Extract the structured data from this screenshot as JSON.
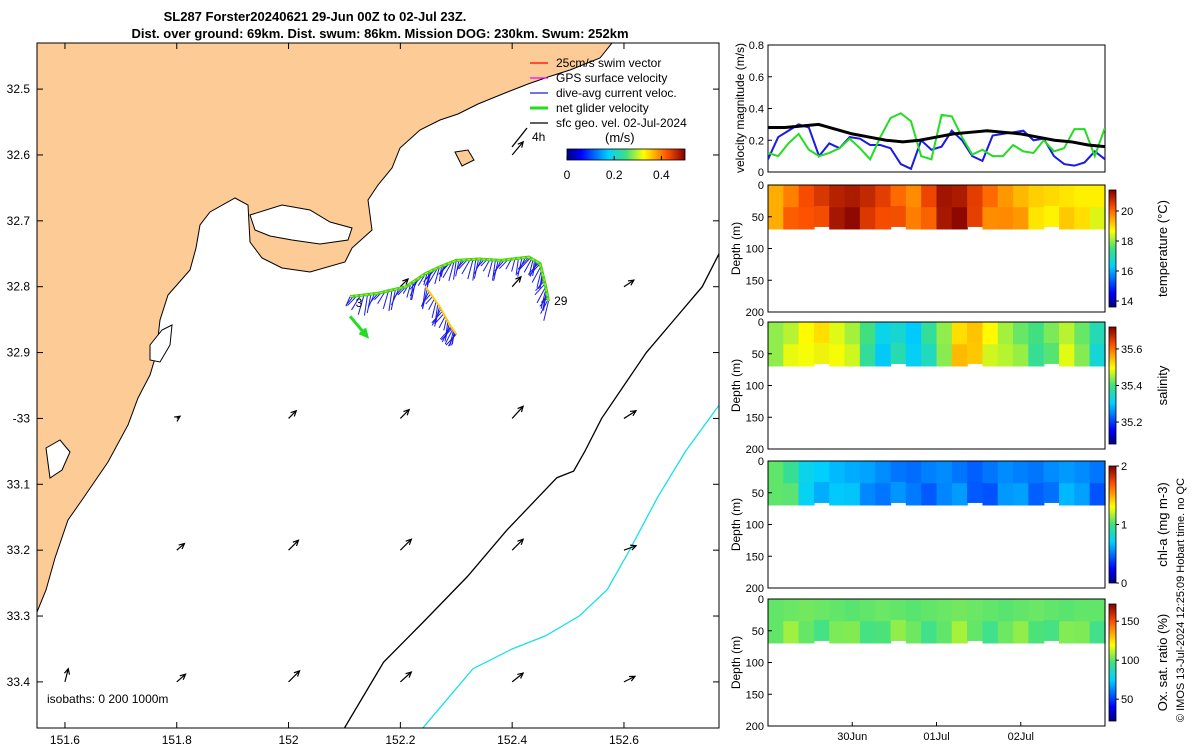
{
  "title": {
    "line1": "SL287 Forster20240621 29-Jun 00Z to 02-Jul 23Z.",
    "line2": "Dist. over ground: 69km. Dist. swum: 86km. Mission DOG: 230km. Swum: 252km"
  },
  "colors": {
    "land": "#fccb96",
    "gps": "#ff00ff",
    "swim": "#ff0000",
    "dive_avg": "#1a1ae6",
    "net_glider": "#22dd22",
    "geo_vel": "#000000",
    "isobath_200": "#000000",
    "isobath_1000": "#19e0e8",
    "track": "#ffcc00"
  },
  "chart_data": [
    {
      "type": "map",
      "name": "glider track map",
      "xlim": [
        151.55,
        152.77
      ],
      "ylim": [
        -33.47,
        -32.43
      ],
      "x_tick_labels": [
        "151.6",
        "151.8",
        "152",
        "152.2",
        "152.4",
        "152.6"
      ],
      "x_ticks": [
        151.6,
        151.8,
        152.0,
        152.2,
        152.4,
        152.6
      ],
      "y_tick_labels": [
        "32.5",
        "32.6",
        "32.7",
        "32.8",
        "32.9",
        "-33",
        "33.1",
        "33.2",
        "33.3",
        "33.4"
      ],
      "y_ticks": [
        -32.5,
        -32.6,
        -32.7,
        -32.8,
        -32.9,
        -33.0,
        -33.1,
        -33.2,
        -33.3,
        -33.4
      ],
      "legend": [
        {
          "label": "25cm/s swim vector",
          "color": "#ff0000"
        },
        {
          "label": "GPS surface velocity",
          "color": "#ff00ff"
        },
        {
          "label": "dive-avg current veloc.",
          "color": "#1a1ae6"
        },
        {
          "label": "net glider velocity",
          "color": "#22dd22"
        },
        {
          "label": "sfc geo. vel. 02-Jul-2024",
          "color": "#000000"
        }
      ],
      "scale_label": "4h",
      "colorbar": {
        "unit": "(m/s)",
        "range": [
          0,
          0.5
        ],
        "tick_labels": [
          "0",
          "0.2",
          "0.4"
        ],
        "ticks": [
          0,
          0.2,
          0.4
        ]
      },
      "isobaths_label": "isobaths: 0   200  1000m",
      "track_labels": [
        "3",
        "29"
      ],
      "track": [
        [
          152.11,
          -32.815
        ],
        [
          152.16,
          -32.81
        ],
        [
          152.21,
          -32.8
        ],
        [
          152.245,
          -32.78
        ],
        [
          152.27,
          -32.77
        ],
        [
          152.3,
          -32.76
        ],
        [
          152.34,
          -32.758
        ],
        [
          152.38,
          -32.76
        ],
        [
          152.43,
          -32.755
        ],
        [
          152.45,
          -32.765
        ],
        [
          152.46,
          -32.8
        ],
        [
          152.465,
          -32.822
        ]
      ],
      "track_branch": [
        [
          152.245,
          -32.8
        ],
        [
          152.27,
          -32.83
        ],
        [
          152.29,
          -32.86
        ],
        [
          152.3,
          -32.872
        ]
      ],
      "net_velocity": {
        "from": [
          152.11,
          -32.845
        ],
        "to": [
          152.14,
          -32.875
        ]
      },
      "geo_vectors": [
        {
          "lon": 151.6,
          "lat": -33.4,
          "u": 0.03,
          "v": 0.12
        },
        {
          "lon": 151.8,
          "lat": -33.4,
          "u": 0.08,
          "v": 0.07
        },
        {
          "lon": 152.0,
          "lat": -33.4,
          "u": 0.1,
          "v": 0.1
        },
        {
          "lon": 152.2,
          "lat": -33.4,
          "u": 0.1,
          "v": 0.09
        },
        {
          "lon": 152.4,
          "lat": -33.4,
          "u": 0.1,
          "v": 0.08
        },
        {
          "lon": 152.6,
          "lat": -33.4,
          "u": 0.1,
          "v": 0.05
        },
        {
          "lon": 151.8,
          "lat": -33.2,
          "u": 0.07,
          "v": 0.06
        },
        {
          "lon": 152.0,
          "lat": -33.2,
          "u": 0.09,
          "v": 0.09
        },
        {
          "lon": 152.2,
          "lat": -33.2,
          "u": 0.1,
          "v": 0.1
        },
        {
          "lon": 152.4,
          "lat": -33.2,
          "u": 0.1,
          "v": 0.1
        },
        {
          "lon": 152.6,
          "lat": -33.2,
          "u": 0.11,
          "v": 0.04
        },
        {
          "lon": 151.8,
          "lat": -33.0,
          "u": 0.03,
          "v": 0.02
        },
        {
          "lon": 152.0,
          "lat": -33.0,
          "u": 0.07,
          "v": 0.07
        },
        {
          "lon": 152.2,
          "lat": -33.0,
          "u": 0.08,
          "v": 0.08
        },
        {
          "lon": 152.4,
          "lat": -33.0,
          "u": 0.1,
          "v": 0.11
        },
        {
          "lon": 152.6,
          "lat": -33.0,
          "u": 0.11,
          "v": 0.07
        },
        {
          "lon": 152.2,
          "lat": -32.8,
          "u": 0.07,
          "v": 0.07
        },
        {
          "lon": 152.4,
          "lat": -32.8,
          "u": 0.08,
          "v": 0.09
        },
        {
          "lon": 152.6,
          "lat": -32.8,
          "u": 0.09,
          "v": 0.06
        },
        {
          "lon": 152.4,
          "lat": -32.6,
          "u": 0.1,
          "v": 0.12
        }
      ],
      "isobath_200": [
        [
          152.1,
          -33.47
        ],
        [
          152.17,
          -33.37
        ],
        [
          152.24,
          -33.31
        ],
        [
          152.32,
          -33.24
        ],
        [
          152.39,
          -33.17
        ],
        [
          152.48,
          -33.09
        ],
        [
          152.51,
          -33.08
        ],
        [
          152.53,
          -33.05
        ],
        [
          152.56,
          -33.0
        ],
        [
          152.6,
          -32.95
        ],
        [
          152.64,
          -32.9
        ],
        [
          152.69,
          -32.85
        ],
        [
          152.74,
          -32.8
        ],
        [
          152.77,
          -32.75
        ]
      ],
      "isobath_1000": [
        [
          152.24,
          -33.47
        ],
        [
          152.29,
          -33.42
        ],
        [
          152.33,
          -33.38
        ],
        [
          152.4,
          -33.35
        ],
        [
          152.46,
          -33.33
        ],
        [
          152.52,
          -33.3
        ],
        [
          152.57,
          -33.26
        ],
        [
          152.61,
          -33.2
        ],
        [
          152.66,
          -33.12
        ],
        [
          152.71,
          -33.05
        ],
        [
          152.77,
          -32.98
        ]
      ]
    },
    {
      "type": "line",
      "name": "velocity magnitude",
      "ylabel": "velocity magnitude (m/s)",
      "ylim": [
        0,
        0.8
      ],
      "y_tick_labels": [
        "0",
        "0.2",
        "0.4",
        "0.6",
        "0.8"
      ],
      "y_ticks": [
        0,
        0.2,
        0.4,
        0.6,
        0.8
      ],
      "xlim": [
        0,
        4
      ],
      "series": [
        {
          "name": "blue",
          "color": "#1a1ae6",
          "values": [
            0.08,
            0.22,
            0.26,
            0.3,
            0.28,
            0.1,
            0.18,
            0.15,
            0.22,
            0.21,
            0.17,
            0.17,
            0.15,
            0.05,
            0.02,
            0.2,
            0.14,
            0.16,
            0.26,
            0.2,
            0.1,
            0.07,
            0.23,
            0.24,
            0.25,
            0.26,
            0.2,
            0.21,
            0.1,
            0.05,
            0.04,
            0.06,
            0.13,
            0.08
          ]
        },
        {
          "name": "green",
          "color": "#22dd22",
          "values": [
            0.12,
            0.1,
            0.18,
            0.24,
            0.14,
            0.1,
            0.12,
            0.15,
            0.21,
            0.15,
            0.08,
            0.22,
            0.34,
            0.37,
            0.32,
            0.1,
            0.08,
            0.36,
            0.35,
            0.22,
            0.11,
            0.14,
            0.1,
            0.1,
            0.17,
            0.13,
            0.12,
            0.2,
            0.13,
            0.15,
            0.27,
            0.27,
            0.1,
            0.28
          ]
        },
        {
          "name": "black",
          "color": "#000000",
          "values": [
            0.28,
            0.28,
            0.29,
            0.3,
            0.27,
            0.24,
            0.22,
            0.2,
            0.19,
            0.2,
            0.22,
            0.24,
            0.25,
            0.26,
            0.25,
            0.24,
            0.22,
            0.2,
            0.19,
            0.17,
            0.16
          ]
        }
      ]
    },
    {
      "type": "heatmap",
      "name": "temperature section",
      "ylabel": "Depth (m)",
      "ylim": [
        0,
        200
      ],
      "y_tick_labels": [
        "0",
        "50",
        "100",
        "150",
        "200"
      ],
      "y_ticks": [
        0,
        50,
        100,
        150,
        200
      ],
      "colorbar_label": "temperature (°C)",
      "colorbar_range": [
        13.6,
        21.4
      ],
      "colorbar_tick_labels": [
        "14",
        "16",
        "18",
        "20"
      ],
      "colorbar_ticks": [
        14,
        16,
        18,
        20
      ],
      "data_depth_max": 70,
      "values": [
        19.4,
        19.8,
        20.3,
        20.6,
        20.9,
        21.0,
        20.8,
        20.5,
        20.0,
        19.7,
        20.4,
        21.1,
        21.0,
        20.5,
        20.0,
        19.6,
        19.3,
        19.1,
        19.0,
        18.9,
        18.8,
        18.8
      ]
    },
    {
      "type": "heatmap",
      "name": "salinity section",
      "ylabel": "Depth (m)",
      "ylim": [
        0,
        200
      ],
      "y_tick_labels": [
        "0",
        "50",
        "100",
        "150",
        "200"
      ],
      "y_ticks": [
        0,
        50,
        100,
        150,
        200
      ],
      "colorbar_label": "salinity",
      "colorbar_range": [
        35.08,
        35.72
      ],
      "colorbar_tick_labels": [
        "35.2",
        "35.4",
        "35.6"
      ],
      "colorbar_ticks": [
        35.2,
        35.4,
        35.6
      ],
      "data_depth_max": 70,
      "values": [
        35.44,
        35.46,
        35.5,
        35.52,
        35.48,
        35.45,
        35.4,
        35.32,
        35.34,
        35.3,
        35.38,
        35.44,
        35.52,
        35.54,
        35.5,
        35.45,
        35.42,
        35.4,
        35.43,
        35.46,
        35.42,
        35.36
      ]
    },
    {
      "type": "heatmap",
      "name": "chlorophyll section",
      "ylabel": "Depth (m)",
      "ylim": [
        0,
        200
      ],
      "y_tick_labels": [
        "0",
        "50",
        "100",
        "150",
        "200"
      ],
      "y_ticks": [
        0,
        50,
        100,
        150,
        200
      ],
      "colorbar_label": "chl-a (mg m-3)",
      "colorbar_range": [
        0,
        2
      ],
      "colorbar_tick_labels": [
        "0",
        "1",
        "2"
      ],
      "colorbar_ticks": [
        0,
        1,
        2
      ],
      "data_depth_max": 70,
      "values": [
        1.05,
        0.95,
        0.75,
        0.7,
        0.65,
        0.62,
        0.6,
        0.55,
        0.5,
        0.48,
        0.52,
        0.55,
        0.5,
        0.45,
        0.5,
        0.55,
        0.52,
        0.5,
        0.55,
        0.58,
        0.55,
        0.5
      ]
    },
    {
      "type": "heatmap",
      "name": "oxygen saturation section",
      "ylabel": "Depth (m)",
      "ylim": [
        0,
        200
      ],
      "y_tick_labels": [
        "0",
        "50",
        "100",
        "150",
        "200"
      ],
      "y_ticks": [
        0,
        50,
        100,
        150,
        200
      ],
      "colorbar_label": "Ox. sat. ratio (%)",
      "colorbar_range": [
        22,
        172
      ],
      "colorbar_tick_labels": [
        "50",
        "100",
        "150"
      ],
      "colorbar_ticks": [
        50,
        100,
        150
      ],
      "data_depth_max": 70,
      "values": [
        101,
        102,
        103,
        102,
        101,
        100,
        101,
        102,
        101,
        100,
        101,
        102,
        103,
        102,
        101,
        100,
        101,
        102,
        101,
        100,
        101,
        101
      ],
      "x_tick_labels": [
        "30Jun",
        "01Jul",
        "02Jul"
      ],
      "x_ticks": [
        1,
        2,
        3
      ],
      "xlim": [
        0,
        4
      ]
    }
  ],
  "side_note": "© IMOS 13-Jul-2024 12:25:09 Hobart time. no QC"
}
